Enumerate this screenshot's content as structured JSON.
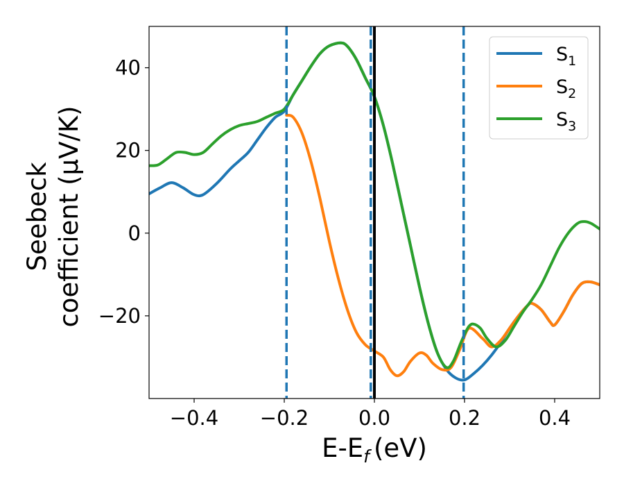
{
  "chart_data": {
    "type": "line",
    "xlabel": "E-E",
    "xlabel_sub": "f",
    "xlabel_unit": "(eV)",
    "ylabel_line1": "Seebeck",
    "ylabel_line2": "coefficient  (μV/K)",
    "xlim": [
      -0.5,
      0.5
    ],
    "ylim": [
      -40,
      50
    ],
    "x_ticks": [
      -0.4,
      -0.2,
      0.0,
      0.2,
      0.4
    ],
    "x_tick_labels": [
      "−0.4",
      "−0.2",
      "0.0",
      "0.2",
      "0.4"
    ],
    "y_ticks": [
      -20,
      0,
      20,
      40
    ],
    "y_tick_labels": [
      "−20",
      "0",
      "20",
      "40"
    ],
    "grid": false,
    "legend_position": "top-right",
    "vlines": [
      {
        "x": -0.195,
        "style": "dashed",
        "color": "#1f77b4"
      },
      {
        "x": -0.008,
        "style": "dashed",
        "color": "#1f77b4"
      },
      {
        "x": 0.0,
        "style": "solid",
        "color": "#000000"
      },
      {
        "x": 0.198,
        "style": "dashed",
        "color": "#1f77b4"
      }
    ],
    "series": [
      {
        "name": "S",
        "sub": "1",
        "color": "#1f77b4",
        "points": [
          [
            -0.5,
            9.5
          ],
          [
            -0.475,
            11
          ],
          [
            -0.45,
            12.2
          ],
          [
            -0.425,
            11
          ],
          [
            -0.4,
            9.3
          ],
          [
            -0.38,
            9.3
          ],
          [
            -0.35,
            12
          ],
          [
            -0.32,
            15.5
          ],
          [
            -0.3,
            17.5
          ],
          [
            -0.28,
            19.5
          ],
          [
            -0.26,
            22.5
          ],
          [
            -0.24,
            25.5
          ],
          [
            -0.22,
            28
          ],
          [
            -0.2,
            29.5
          ],
          [
            -0.18,
            33.5
          ],
          [
            -0.16,
            37
          ],
          [
            -0.14,
            40.5
          ],
          [
            -0.12,
            43.5
          ],
          [
            -0.1,
            45.3
          ],
          [
            -0.075,
            46
          ],
          [
            -0.06,
            45.2
          ],
          [
            -0.04,
            42
          ],
          [
            -0.02,
            37.5
          ],
          [
            0.0,
            33
          ],
          [
            0.02,
            26
          ],
          [
            0.04,
            17
          ],
          [
            0.06,
            7
          ],
          [
            0.08,
            -3
          ],
          [
            0.1,
            -13
          ],
          [
            0.12,
            -22
          ],
          [
            0.14,
            -29
          ],
          [
            0.16,
            -33
          ],
          [
            0.18,
            -35
          ],
          [
            0.2,
            -35.5
          ],
          [
            0.22,
            -34
          ],
          [
            0.24,
            -32
          ],
          [
            0.26,
            -29.5
          ],
          [
            0.28,
            -26.5
          ],
          [
            0.3,
            -23
          ],
          [
            0.32,
            -20
          ],
          [
            0.34,
            -17.5
          ],
          [
            0.35,
            -17
          ],
          [
            0.37,
            -18.5
          ],
          [
            0.39,
            -21.5
          ],
          [
            0.4,
            -22.2
          ],
          [
            0.42,
            -19
          ],
          [
            0.44,
            -15
          ],
          [
            0.46,
            -12.2
          ],
          [
            0.48,
            -11.8
          ],
          [
            0.5,
            -12.5
          ]
        ]
      },
      {
        "name": "S",
        "sub": "2",
        "color": "#ff7f0e",
        "points": [
          [
            -0.195,
            28.5
          ],
          [
            -0.18,
            28
          ],
          [
            -0.16,
            24
          ],
          [
            -0.14,
            17
          ],
          [
            -0.12,
            8
          ],
          [
            -0.1,
            -2
          ],
          [
            -0.08,
            -11
          ],
          [
            -0.06,
            -18.5
          ],
          [
            -0.04,
            -24
          ],
          [
            -0.02,
            -27
          ],
          [
            0.0,
            -28.5
          ],
          [
            0.02,
            -30
          ],
          [
            0.035,
            -33
          ],
          [
            0.05,
            -34.5
          ],
          [
            0.065,
            -33.5
          ],
          [
            0.08,
            -31
          ],
          [
            0.1,
            -29
          ],
          [
            0.115,
            -29.5
          ],
          [
            0.13,
            -31.5
          ],
          [
            0.15,
            -33
          ],
          [
            0.17,
            -32.5
          ],
          [
            0.19,
            -28
          ],
          [
            0.21,
            -23
          ],
          [
            0.24,
            -25.5
          ],
          [
            0.26,
            -27.5
          ],
          [
            0.28,
            -26
          ],
          [
            0.3,
            -23
          ],
          [
            0.32,
            -20
          ],
          [
            0.34,
            -17.5
          ],
          [
            0.35,
            -17
          ],
          [
            0.37,
            -18.5
          ],
          [
            0.39,
            -21.5
          ],
          [
            0.4,
            -22.2
          ],
          [
            0.42,
            -19
          ],
          [
            0.44,
            -15
          ],
          [
            0.46,
            -12.2
          ],
          [
            0.48,
            -11.8
          ],
          [
            0.5,
            -12.5
          ]
        ]
      },
      {
        "name": "S",
        "sub": "3",
        "color": "#2ca02c",
        "points": [
          [
            -0.5,
            16.3
          ],
          [
            -0.48,
            16.5
          ],
          [
            -0.46,
            18
          ],
          [
            -0.44,
            19.5
          ],
          [
            -0.42,
            19.5
          ],
          [
            -0.4,
            19
          ],
          [
            -0.38,
            19.5
          ],
          [
            -0.36,
            21.5
          ],
          [
            -0.34,
            23.5
          ],
          [
            -0.32,
            25
          ],
          [
            -0.3,
            26
          ],
          [
            -0.28,
            26.5
          ],
          [
            -0.26,
            27
          ],
          [
            -0.24,
            28
          ],
          [
            -0.22,
            29
          ],
          [
            -0.2,
            30
          ],
          [
            -0.18,
            33.5
          ],
          [
            -0.16,
            37
          ],
          [
            -0.14,
            40.5
          ],
          [
            -0.12,
            43.5
          ],
          [
            -0.1,
            45.3
          ],
          [
            -0.075,
            46
          ],
          [
            -0.06,
            45.2
          ],
          [
            -0.04,
            42
          ],
          [
            -0.02,
            37.5
          ],
          [
            0.0,
            33
          ],
          [
            0.02,
            26
          ],
          [
            0.04,
            17
          ],
          [
            0.06,
            7
          ],
          [
            0.08,
            -3
          ],
          [
            0.1,
            -13
          ],
          [
            0.12,
            -22
          ],
          [
            0.14,
            -29
          ],
          [
            0.16,
            -32.5
          ],
          [
            0.175,
            -31
          ],
          [
            0.19,
            -27
          ],
          [
            0.2,
            -24.5
          ],
          [
            0.21,
            -22.5
          ],
          [
            0.22,
            -22
          ],
          [
            0.235,
            -23
          ],
          [
            0.25,
            -25.5
          ],
          [
            0.27,
            -27.5
          ],
          [
            0.29,
            -26
          ],
          [
            0.31,
            -22.5
          ],
          [
            0.33,
            -19
          ],
          [
            0.35,
            -16
          ],
          [
            0.37,
            -12.5
          ],
          [
            0.39,
            -8
          ],
          [
            0.41,
            -3.5
          ],
          [
            0.43,
            0
          ],
          [
            0.45,
            2.3
          ],
          [
            0.465,
            2.8
          ],
          [
            0.48,
            2.4
          ],
          [
            0.5,
            1
          ]
        ]
      }
    ]
  }
}
